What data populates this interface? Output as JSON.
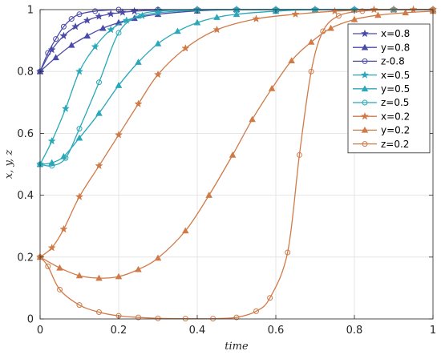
{
  "chart_data": {
    "type": "line",
    "title": "",
    "xlabel": "time",
    "ylabel": "x, y, z",
    "xlim": [
      0,
      1
    ],
    "ylim": [
      0,
      1
    ],
    "xticks": [
      0,
      0.2,
      0.4,
      0.6,
      0.8,
      1
    ],
    "yticks": [
      0,
      0.2,
      0.4,
      0.6,
      0.8,
      1
    ],
    "xtick_labels": [
      "0",
      "0.2",
      "0.4",
      "0.6",
      "0.8",
      "1"
    ],
    "ytick_labels": [
      "0",
      "0.2",
      "0.4",
      "0.6",
      "0.8",
      "1"
    ],
    "grid": true,
    "legend_position": "top-right",
    "series": [
      {
        "name": "x=0.8",
        "color": "#4a4aa8",
        "marker": "star",
        "points": [
          [
            0,
            0.8
          ],
          [
            0.03,
            0.87
          ],
          [
            0.06,
            0.915
          ],
          [
            0.09,
            0.945
          ],
          [
            0.12,
            0.965
          ],
          [
            0.15,
            0.978
          ],
          [
            0.18,
            0.986
          ],
          [
            0.21,
            0.991
          ],
          [
            0.24,
            0.995
          ],
          [
            0.3,
            0.998
          ],
          [
            0.4,
            1
          ],
          [
            0.5,
            1
          ],
          [
            0.6,
            1
          ],
          [
            0.7,
            1
          ],
          [
            0.8,
            1
          ],
          [
            0.9,
            1
          ],
          [
            1,
            1
          ]
        ]
      },
      {
        "name": "y=0.8",
        "color": "#4a4aa8",
        "marker": "triangle",
        "points": [
          [
            0,
            0.8
          ],
          [
            0.04,
            0.845
          ],
          [
            0.08,
            0.885
          ],
          [
            0.12,
            0.915
          ],
          [
            0.16,
            0.94
          ],
          [
            0.2,
            0.958
          ],
          [
            0.24,
            0.972
          ],
          [
            0.3,
            0.985
          ],
          [
            0.4,
            0.996
          ],
          [
            0.5,
            1
          ],
          [
            0.6,
            1
          ],
          [
            0.7,
            1
          ],
          [
            0.8,
            1
          ],
          [
            0.9,
            1
          ],
          [
            1,
            1
          ]
        ]
      },
      {
        "name": "z-0.8",
        "color": "#4a4aa8",
        "marker": "circle",
        "points": [
          [
            0,
            0.8
          ],
          [
            0.02,
            0.86
          ],
          [
            0.04,
            0.905
          ],
          [
            0.06,
            0.945
          ],
          [
            0.08,
            0.97
          ],
          [
            0.1,
            0.985
          ],
          [
            0.14,
            0.995
          ],
          [
            0.2,
            1
          ],
          [
            0.3,
            1
          ],
          [
            0.4,
            1
          ],
          [
            0.5,
            1
          ],
          [
            0.6,
            1
          ],
          [
            0.7,
            1
          ],
          [
            0.8,
            1
          ],
          [
            0.9,
            1
          ],
          [
            1,
            1
          ]
        ]
      },
      {
        "name": "x=0.5",
        "color": "#2aa8b8",
        "marker": "star",
        "points": [
          [
            0,
            0.5
          ],
          [
            0.03,
            0.575
          ],
          [
            0.065,
            0.68
          ],
          [
            0.1,
            0.8
          ],
          [
            0.14,
            0.88
          ],
          [
            0.18,
            0.935
          ],
          [
            0.22,
            0.965
          ],
          [
            0.26,
            0.98
          ],
          [
            0.3,
            0.99
          ],
          [
            0.4,
            0.998
          ],
          [
            0.5,
            1
          ],
          [
            0.6,
            1
          ],
          [
            0.7,
            1
          ],
          [
            0.8,
            1
          ],
          [
            0.9,
            1
          ],
          [
            1,
            1
          ]
        ]
      },
      {
        "name": "y=0.5",
        "color": "#2aa8b8",
        "marker": "triangle",
        "points": [
          [
            0,
            0.5
          ],
          [
            0.03,
            0.505
          ],
          [
            0.06,
            0.525
          ],
          [
            0.1,
            0.585
          ],
          [
            0.15,
            0.665
          ],
          [
            0.2,
            0.755
          ],
          [
            0.25,
            0.83
          ],
          [
            0.3,
            0.89
          ],
          [
            0.35,
            0.93
          ],
          [
            0.4,
            0.958
          ],
          [
            0.45,
            0.975
          ],
          [
            0.5,
            0.985
          ],
          [
            0.6,
            0.995
          ],
          [
            0.7,
            1
          ],
          [
            0.8,
            1
          ],
          [
            0.9,
            1
          ],
          [
            1,
            1
          ]
        ]
      },
      {
        "name": "z=0.5",
        "color": "#2aa8b8",
        "marker": "circle",
        "points": [
          [
            0,
            0.5
          ],
          [
            0.03,
            0.495
          ],
          [
            0.065,
            0.52
          ],
          [
            0.1,
            0.615
          ],
          [
            0.15,
            0.765
          ],
          [
            0.2,
            0.925
          ],
          [
            0.25,
            0.98
          ],
          [
            0.3,
            0.995
          ],
          [
            0.4,
            1
          ],
          [
            0.5,
            1
          ],
          [
            0.6,
            1
          ],
          [
            0.7,
            1
          ],
          [
            0.8,
            1
          ],
          [
            0.9,
            1
          ],
          [
            1,
            1
          ]
        ]
      },
      {
        "name": "x=0.2",
        "color": "#d07a48",
        "marker": "star",
        "points": [
          [
            0,
            0.2
          ],
          [
            0.03,
            0.23
          ],
          [
            0.06,
            0.29
          ],
          [
            0.1,
            0.395
          ],
          [
            0.15,
            0.495
          ],
          [
            0.2,
            0.595
          ],
          [
            0.25,
            0.695
          ],
          [
            0.3,
            0.79
          ],
          [
            0.37,
            0.875
          ],
          [
            0.45,
            0.935
          ],
          [
            0.55,
            0.97
          ],
          [
            0.65,
            0.985
          ],
          [
            0.75,
            0.995
          ],
          [
            0.85,
            1
          ],
          [
            0.95,
            1
          ],
          [
            1,
            1
          ]
        ]
      },
      {
        "name": "y=0.2",
        "color": "#d07a48",
        "marker": "triangle",
        "points": [
          [
            0,
            0.2
          ],
          [
            0.05,
            0.165
          ],
          [
            0.1,
            0.14
          ],
          [
            0.15,
            0.132
          ],
          [
            0.2,
            0.137
          ],
          [
            0.25,
            0.16
          ],
          [
            0.3,
            0.197
          ],
          [
            0.37,
            0.285
          ],
          [
            0.43,
            0.4
          ],
          [
            0.49,
            0.53
          ],
          [
            0.54,
            0.645
          ],
          [
            0.59,
            0.745
          ],
          [
            0.64,
            0.835
          ],
          [
            0.69,
            0.895
          ],
          [
            0.74,
            0.94
          ],
          [
            0.8,
            0.968
          ],
          [
            0.86,
            0.982
          ],
          [
            0.93,
            0.99
          ],
          [
            1,
            0.995
          ]
        ]
      },
      {
        "name": "z=0.2",
        "color": "#d07a48",
        "marker": "circle",
        "points": [
          [
            0,
            0.2
          ],
          [
            0.02,
            0.17
          ],
          [
            0.05,
            0.095
          ],
          [
            0.1,
            0.045
          ],
          [
            0.15,
            0.022
          ],
          [
            0.2,
            0.01
          ],
          [
            0.25,
            0.005
          ],
          [
            0.3,
            0.002
          ],
          [
            0.37,
            0.001
          ],
          [
            0.44,
            0.001
          ],
          [
            0.5,
            0.005
          ],
          [
            0.55,
            0.025
          ],
          [
            0.585,
            0.068
          ],
          [
            0.63,
            0.215
          ],
          [
            0.66,
            0.53
          ],
          [
            0.69,
            0.8
          ],
          [
            0.72,
            0.93
          ],
          [
            0.76,
            0.98
          ],
          [
            0.82,
            0.995
          ],
          [
            0.9,
            1
          ],
          [
            1,
            1
          ]
        ]
      }
    ]
  }
}
